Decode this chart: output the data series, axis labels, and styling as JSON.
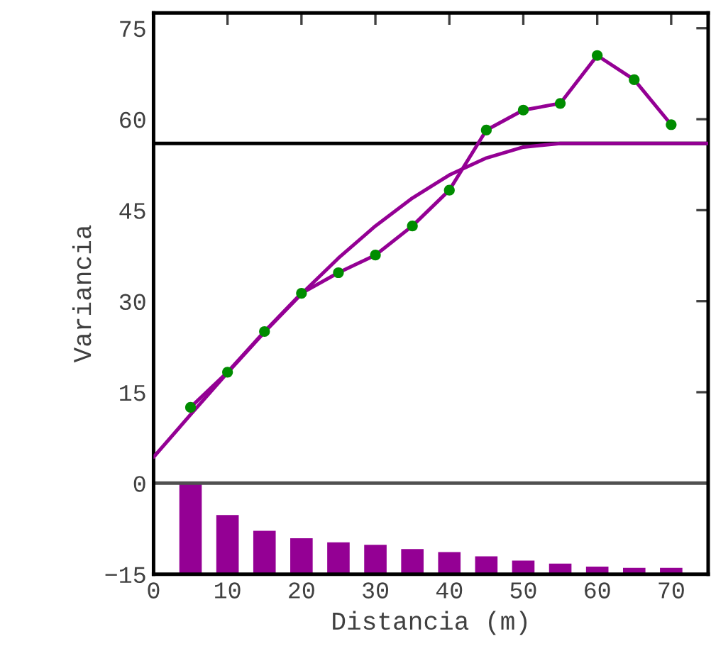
{
  "chart_data": {
    "type": "line",
    "xlabel": "Distancia (m)",
    "ylabel": "Variancia",
    "xlim": [
      0,
      75
    ],
    "xticks": [
      0,
      10,
      20,
      30,
      40,
      50,
      60,
      70
    ],
    "ylim": [
      -15,
      77.5
    ],
    "yticks": [
      {
        "value": -15,
        "label": "−15"
      },
      0,
      15,
      30,
      45,
      60,
      75
    ],
    "grid": false,
    "legend": false,
    "series": [
      {
        "type": "bar",
        "color": "#940094",
        "x": [
          5,
          10,
          15,
          20,
          25,
          30,
          35,
          40,
          45,
          50,
          55,
          60,
          65,
          70
        ],
        "base": [
          -15,
          -15,
          -15,
          -15,
          -15,
          -15,
          -15,
          -15,
          -15,
          -15,
          -15,
          -15,
          -15,
          -15
        ],
        "values": [
          15,
          9.9,
          7.3,
          6.1,
          5.4,
          5.0,
          4.3,
          3.8,
          3.1,
          2.4,
          1.9,
          1.4,
          1.2,
          1.2
        ]
      },
      {
        "color": "#940094",
        "marker": "none",
        "x": [
          0,
          5,
          10,
          15,
          20,
          25,
          30,
          35,
          40,
          45,
          50,
          55,
          75
        ],
        "values": [
          4.3,
          11.3,
          18.2,
          24.9,
          31.2,
          37.1,
          42.4,
          47.0,
          50.8,
          53.6,
          55.4,
          56,
          56
        ]
      },
      {
        "color": "#940094",
        "marker": "none",
        "x": [
          5,
          10,
          15,
          20,
          25,
          30,
          35,
          40,
          45,
          50,
          55,
          60,
          65,
          70
        ],
        "values": [
          12.5,
          18.3,
          25,
          31.3,
          34.7,
          37.6,
          42.4,
          48.3,
          58.2,
          61.5,
          62.6,
          70.5,
          66.5,
          59.1
        ]
      },
      {
        "type": "scatter",
        "color": "#008c00",
        "marker": "circle",
        "x": [
          5,
          10,
          15,
          20,
          25,
          30,
          35,
          40,
          45,
          50,
          55,
          60,
          65,
          70
        ],
        "values": [
          12.5,
          18.3,
          25,
          31.3,
          34.7,
          37.6,
          42.4,
          48.3,
          58.2,
          61.5,
          62.6,
          70.5,
          66.5,
          59.1
        ]
      }
    ],
    "ref_lines": [
      {
        "axis": "y",
        "value": 0,
        "color": "#505050"
      },
      {
        "axis": "y",
        "value": 56,
        "color": "#000000"
      }
    ]
  }
}
